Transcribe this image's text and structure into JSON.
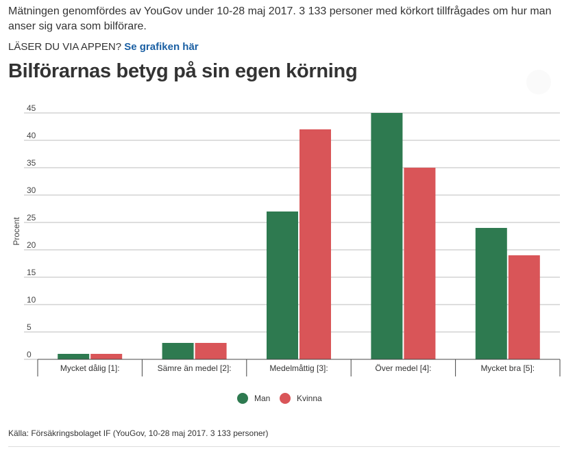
{
  "intro": {
    "text": "Mätningen genomfördes av YouGov under 10-28 maj 2017. 3 133 personer med körkort tillfrågades om hur man anser sig vara som bilförare."
  },
  "app_line": {
    "prefix": "LÄSER DU VIA APPEN?",
    "link_label": "Se grafiken här"
  },
  "source": {
    "text": "Källa: Försäkringsbolaget IF (YouGov, 10-28 maj 2017. 3 133 personer)"
  },
  "chart_data": {
    "type": "bar",
    "title": "Bilförarnas betyg på sin egen körning",
    "xlabel": "",
    "ylabel": "Procent",
    "ylim": [
      0,
      45
    ],
    "yticks": [
      0,
      5,
      10,
      15,
      20,
      25,
      30,
      35,
      40,
      45
    ],
    "grid": true,
    "legend_position": "bottom-center",
    "categories": [
      "Mycket dålig [1]:",
      "Sämre än medel [2]:",
      "Medelmåttig [3]:",
      "Över medel [4]:",
      "Mycket bra [5]:"
    ],
    "series": [
      {
        "name": "Man",
        "color": "#2e7a50",
        "values": [
          1,
          3,
          27,
          45,
          24
        ]
      },
      {
        "name": "Kvinna",
        "color": "#d95558",
        "values": [
          1,
          3,
          42,
          35,
          19
        ]
      }
    ]
  }
}
